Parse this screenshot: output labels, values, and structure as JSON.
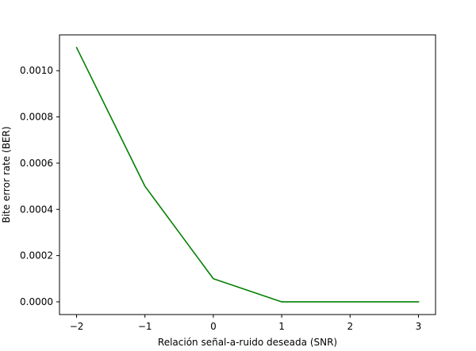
{
  "chart_data": {
    "type": "line",
    "title": "",
    "xlabel": "Relación señal-a-ruido deseada (SNR)",
    "ylabel": "Bite error rate (BER)",
    "xlim": [
      -2.25,
      3.25
    ],
    "ylim": [
      -5.5e-05,
      0.001155
    ],
    "grid": false,
    "legend": "none",
    "x": [
      -2,
      -1,
      0,
      1,
      2,
      3
    ],
    "series": [
      {
        "name": "BER",
        "color": "#008000",
        "values": [
          0.0011,
          0.0005,
          0.0001,
          0.0,
          0.0,
          0.0
        ]
      }
    ],
    "xticks": [
      -2,
      -1,
      0,
      1,
      2,
      3
    ],
    "xtick_labels": [
      "−2",
      "−1",
      "0",
      "1",
      "2",
      "3"
    ],
    "yticks": [
      0.0,
      0.0002,
      0.0004,
      0.0006,
      0.0008,
      0.001
    ],
    "ytick_labels": [
      "0.0000",
      "0.0002",
      "0.0004",
      "0.0006",
      "0.0008",
      "0.0010"
    ]
  }
}
